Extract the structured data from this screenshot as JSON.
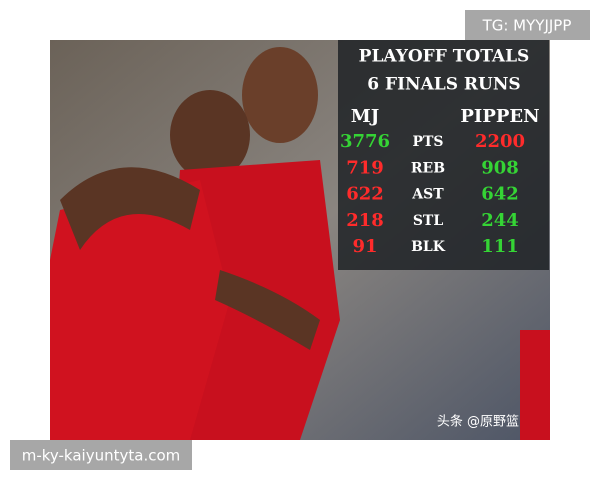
{
  "watermark_top": "TG: MYYJJPP",
  "panel": {
    "title": "PLAYOFF TOTALS",
    "subtitle": "6 FINALS RUNS",
    "headers": [
      "MJ",
      "PIPPEN"
    ],
    "rows": [
      {
        "mj": 3776,
        "stat": "PTS",
        "pippen": 2200,
        "mj_color": "#35d435",
        "pippen_color": "#ff2b2b"
      },
      {
        "mj": 719,
        "stat": "REB",
        "pippen": 908,
        "mj_color": "#ff2b2b",
        "pippen_color": "#35d435"
      },
      {
        "mj": 622,
        "stat": "AST",
        "pippen": 642,
        "mj_color": "#ff2b2b",
        "pippen_color": "#35d435"
      },
      {
        "mj": 218,
        "stat": "STL",
        "pippen": 244,
        "mj_color": "#ff2b2b",
        "pippen_color": "#35d435"
      },
      {
        "mj": 91,
        "stat": "BLK",
        "pippen": 111,
        "mj_color": "#ff2b2b",
        "pippen_color": "#35d435"
      }
    ]
  },
  "photo_credit": "头条 @原野篮",
  "watermark_bottom": "m-ky-kaiyuntyta.com"
}
